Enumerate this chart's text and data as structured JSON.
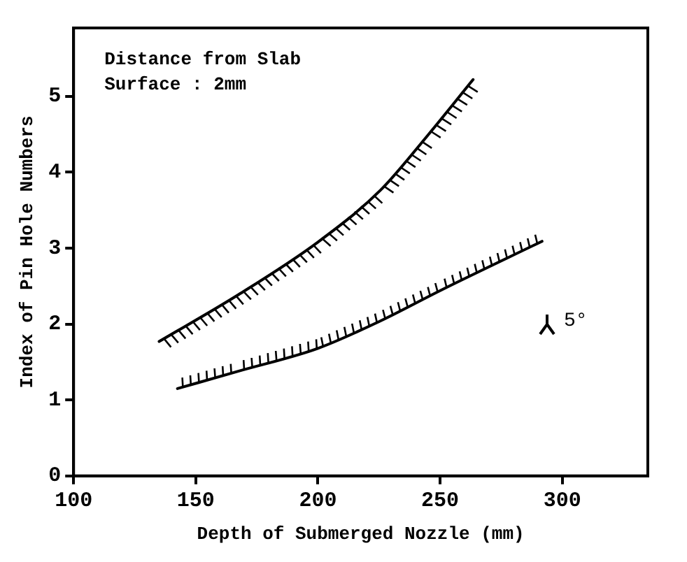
{
  "chart_data": {
    "type": "line",
    "xlabel": "Depth of Submerged Nozzle (mm)",
    "ylabel": "Index of Pin Hole Numbers",
    "annotations": [
      "Distance from Slab Surface : 2mm",
      "5°"
    ],
    "series": [
      {
        "color": "#000000",
        "x": [
          135,
          167.6,
          200,
          225.5,
          244.8,
          263.5
        ],
        "values": [
          1.77,
          2.39,
          3.08,
          3.76,
          4.48,
          5.22
        ]
      },
      {
        "color": "#000000",
        "x": [
          142.5,
          167.6,
          200,
          225.5,
          250.6,
          291.7
        ],
        "values": [
          1.15,
          1.38,
          1.68,
          2.04,
          2.45,
          3.09
        ]
      }
    ],
    "xlim": [
      100,
      335
    ],
    "xticks": [
      100,
      150,
      200,
      250,
      300
    ],
    "ylim": [
      0,
      5.9
    ],
    "yticks": [
      0,
      1,
      2,
      3,
      4,
      5
    ],
    "grid": false,
    "legend": false,
    "marker": "none",
    "line_style": "solid"
  }
}
